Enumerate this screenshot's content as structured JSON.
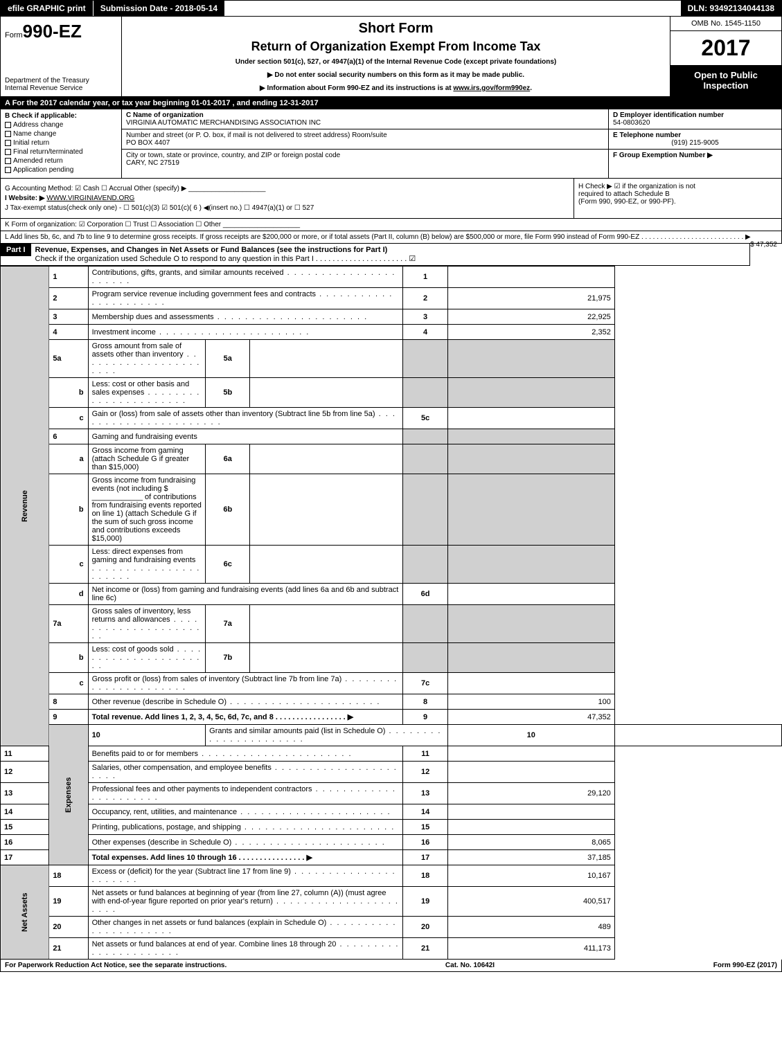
{
  "topbar": {
    "efile": "efile GRAPHIC print",
    "submission": "Submission Date - 2018-05-14",
    "dln": "DLN: 93492134044138"
  },
  "header": {
    "form_prefix": "Form",
    "form_number": "990-EZ",
    "dept1": "Department of the Treasury",
    "dept2": "Internal Revenue Service",
    "short_form": "Short Form",
    "return_title": "Return of Organization Exempt From Income Tax",
    "under": "Under section 501(c), 527, or 4947(a)(1) of the Internal Revenue Code (except private foundations)",
    "note1": "▶ Do not enter social security numbers on this form as it may be made public.",
    "note2": "▶ Information about Form 990-EZ and its instructions is at www.irs.gov/form990ez.",
    "omb": "OMB No. 1545-1150",
    "year": "2017",
    "open1": "Open to Public",
    "open2": "Inspection"
  },
  "sectionA": {
    "line_a": "A  For the 2017 calendar year, or tax year beginning 01-01-2017          , and ending 12-31-2017",
    "b_label": "B  Check if applicable:",
    "b_items": [
      "Address change",
      "Name change",
      "Initial return",
      "Final return/terminated",
      "Amended return",
      "Application pending"
    ],
    "c_label": "C Name of organization",
    "c_name": "VIRGINIA AUTOMATIC MERCHANDISING ASSOCIATION INC",
    "c_street_label": "Number and street (or P. O. box, if mail is not delivered to street address)    Room/suite",
    "c_street": "PO BOX 4407",
    "c_city_label": "City or town, state or province, country, and ZIP or foreign postal code",
    "c_city": "CARY, NC  27519",
    "d_label": "D Employer identification number",
    "d_val": "54-0803620",
    "e_label": "E Telephone number",
    "e_val": "(919) 215-9005",
    "f_label": "F Group Exemption Number  ▶"
  },
  "gih": {
    "g": "G Accounting Method:   ☑ Cash   ☐ Accrual   Other (specify) ▶ ____________________",
    "i_label": "I Website: ▶",
    "i_val": "WWW.VIRGINIAVEND.ORG",
    "j": "J Tax-exempt status(check only one) -  ☐ 501(c)(3)  ☑ 501(c)( 6 ) ◀(insert no.)  ☐ 4947(a)(1) or  ☐ 527",
    "h1": "H  Check ▶  ☑  if the organization is not",
    "h2": "required to attach Schedule B",
    "h3": "(Form 990, 990-EZ, or 990-PF)."
  },
  "k": "K Form of organization:   ☑ Corporation   ☐ Trust   ☐ Association   ☐ Other  ____________________",
  "l": {
    "text": "L Add lines 5b, 6c, and 7b to line 9 to determine gross receipts. If gross receipts are $200,000 or more, or if total assets (Part II, column (B) below) are $500,000 or more, file Form 990 instead of Form 990-EZ  . . . . . . . . . . . . . . . . . . . . . . . . . . . ▶",
    "val": "$ 47,352"
  },
  "part1": {
    "label": "Part I",
    "title": "Revenue, Expenses, and Changes in Net Assets or Fund Balances (see the instructions for Part I)",
    "subtitle": "Check if the organization used Schedule O to respond to any question in this Part I . . . . . . . . . . . . . . . . . . . . . . ☑"
  },
  "side_labels": {
    "rev": "Revenue",
    "exp": "Expenses",
    "net": "Net Assets"
  },
  "lines": {
    "l1": {
      "n": "1",
      "d": "Contributions, gifts, grants, and similar amounts received",
      "c": "1",
      "v": ""
    },
    "l2": {
      "n": "2",
      "d": "Program service revenue including government fees and contracts",
      "c": "2",
      "v": "21,975"
    },
    "l3": {
      "n": "3",
      "d": "Membership dues and assessments",
      "c": "3",
      "v": "22,925"
    },
    "l4": {
      "n": "4",
      "d": "Investment income",
      "c": "4",
      "v": "2,352"
    },
    "l5a": {
      "n": "5a",
      "d": "Gross amount from sale of assets other than inventory",
      "ib": "5a",
      "iv": ""
    },
    "l5b": {
      "n": "b",
      "d": "Less: cost or other basis and sales expenses",
      "ib": "5b",
      "iv": ""
    },
    "l5c": {
      "n": "c",
      "d": "Gain or (loss) from sale of assets other than inventory (Subtract line 5b from line 5a)",
      "c": "5c",
      "v": ""
    },
    "l6": {
      "n": "6",
      "d": "Gaming and fundraising events"
    },
    "l6a": {
      "n": "a",
      "d": "Gross income from gaming (attach Schedule G if greater than $15,000)",
      "ib": "6a",
      "iv": ""
    },
    "l6b": {
      "n": "b",
      "d": "Gross income from fundraising events (not including $ ____________ of contributions from fundraising events reported on line 1) (attach Schedule G if the sum of such gross income and contributions exceeds $15,000)",
      "ib": "6b",
      "iv": ""
    },
    "l6c": {
      "n": "c",
      "d": "Less: direct expenses from gaming and fundraising events",
      "ib": "6c",
      "iv": ""
    },
    "l6d": {
      "n": "d",
      "d": "Net income or (loss) from gaming and fundraising events (add lines 6a and 6b and subtract line 6c)",
      "c": "6d",
      "v": ""
    },
    "l7a": {
      "n": "7a",
      "d": "Gross sales of inventory, less returns and allowances",
      "ib": "7a",
      "iv": ""
    },
    "l7b": {
      "n": "b",
      "d": "Less: cost of goods sold",
      "ib": "7b",
      "iv": ""
    },
    "l7c": {
      "n": "c",
      "d": "Gross profit or (loss) from sales of inventory (Subtract line 7b from line 7a)",
      "c": "7c",
      "v": ""
    },
    "l8": {
      "n": "8",
      "d": "Other revenue (describe in Schedule O)",
      "c": "8",
      "v": "100"
    },
    "l9": {
      "n": "9",
      "d": "Total revenue. Add lines 1, 2, 3, 4, 5c, 6d, 7c, and 8  . . . . . . . . . . . . . . . . . ▶",
      "c": "9",
      "v": "47,352"
    },
    "l10": {
      "n": "10",
      "d": "Grants and similar amounts paid (list in Schedule O)",
      "c": "10",
      "v": ""
    },
    "l11": {
      "n": "11",
      "d": "Benefits paid to or for members",
      "c": "11",
      "v": ""
    },
    "l12": {
      "n": "12",
      "d": "Salaries, other compensation, and employee benefits",
      "c": "12",
      "v": ""
    },
    "l13": {
      "n": "13",
      "d": "Professional fees and other payments to independent contractors",
      "c": "13",
      "v": "29,120"
    },
    "l14": {
      "n": "14",
      "d": "Occupancy, rent, utilities, and maintenance",
      "c": "14",
      "v": ""
    },
    "l15": {
      "n": "15",
      "d": "Printing, publications, postage, and shipping",
      "c": "15",
      "v": ""
    },
    "l16": {
      "n": "16",
      "d": "Other expenses (describe in Schedule O)",
      "c": "16",
      "v": "8,065"
    },
    "l17": {
      "n": "17",
      "d": "Total expenses. Add lines 10 through 16   . . . . . . . . . . . . . . . . ▶",
      "c": "17",
      "v": "37,185"
    },
    "l18": {
      "n": "18",
      "d": "Excess or (deficit) for the year (Subtract line 17 from line 9)",
      "c": "18",
      "v": "10,167"
    },
    "l19": {
      "n": "19",
      "d": "Net assets or fund balances at beginning of year (from line 27, column (A)) (must agree with end-of-year figure reported on prior year's return)",
      "c": "19",
      "v": "400,517"
    },
    "l20": {
      "n": "20",
      "d": "Other changes in net assets or fund balances (explain in Schedule O)",
      "c": "20",
      "v": "489"
    },
    "l21": {
      "n": "21",
      "d": "Net assets or fund balances at end of year. Combine lines 18 through 20",
      "c": "21",
      "v": "411,173"
    }
  },
  "footer": {
    "left": "For Paperwork Reduction Act Notice, see the separate instructions.",
    "center": "Cat. No. 10642I",
    "right": "Form 990-EZ (2017)"
  }
}
